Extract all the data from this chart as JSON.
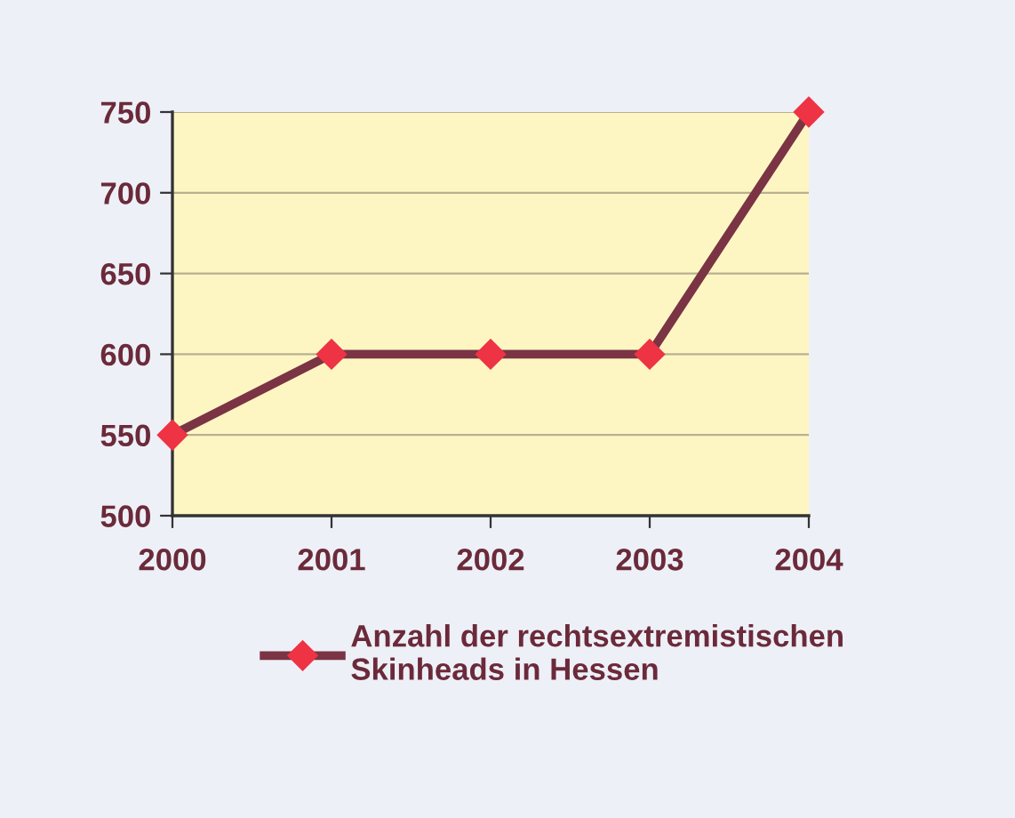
{
  "chart_data": {
    "type": "line",
    "categories": [
      "2000",
      "2001",
      "2002",
      "2003",
      "2004"
    ],
    "series": [
      {
        "name": "Anzahl der rechtsextremistischen\nSkinheads in Hessen",
        "color": "#7a3444",
        "values": [
          550,
          600,
          600,
          600,
          750
        ]
      }
    ],
    "ylim": [
      500,
      750
    ],
    "yticks": [
      500,
      550,
      600,
      650,
      700,
      750
    ],
    "grid": "y",
    "legend": "bottom",
    "marker": "diamond",
    "line_style": "solid"
  }
}
